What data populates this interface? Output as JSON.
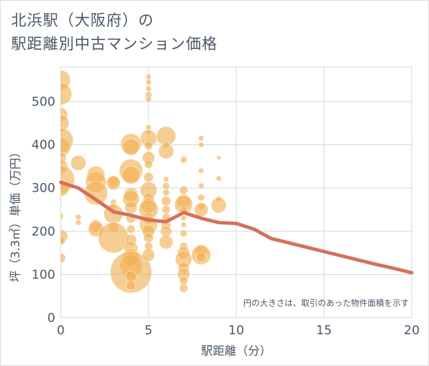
{
  "title_line1": "北浜駅（大阪府）の",
  "title_line2": "駅距離別中古マンション価格",
  "chart_data": {
    "type": "scatter",
    "xlabel": "駅距離（分）",
    "ylabel": "坪（3.3㎡）単価（万円）",
    "xlim": [
      0,
      20
    ],
    "ylim": [
      0,
      580
    ],
    "xticks": [
      "0",
      "5",
      "10",
      "15",
      "20"
    ],
    "yticks": [
      "0",
      "100",
      "200",
      "300",
      "400",
      "500"
    ],
    "grid": true,
    "note": "円の大きさは、取引のあった物件面積を示す",
    "bubble_color": "#f0b050",
    "line_color": "#d4705a",
    "trend_line": {
      "x": [
        0,
        1,
        2,
        3,
        4,
        5,
        6,
        7,
        8,
        9,
        10,
        11,
        12,
        13,
        14,
        15,
        16,
        17,
        18,
        19,
        20
      ],
      "y": [
        313,
        300,
        273,
        245,
        237,
        226,
        222,
        243,
        230,
        220,
        218,
        205,
        183,
        173,
        163,
        153,
        143,
        133,
        123,
        114,
        104
      ]
    },
    "points": [
      {
        "x": 0,
        "y": 550,
        "s": 14
      },
      {
        "x": 0,
        "y": 518,
        "s": 16
      },
      {
        "x": 0,
        "y": 470,
        "s": 10
      },
      {
        "x": 0,
        "y": 450,
        "s": 12
      },
      {
        "x": 0,
        "y": 410,
        "s": 18
      },
      {
        "x": 0,
        "y": 395,
        "s": 14
      },
      {
        "x": 0,
        "y": 370,
        "s": 8
      },
      {
        "x": 0,
        "y": 350,
        "s": 10
      },
      {
        "x": 0,
        "y": 320,
        "s": 20
      },
      {
        "x": 0,
        "y": 300,
        "s": 12
      },
      {
        "x": 0,
        "y": 235,
        "s": 4
      },
      {
        "x": 0,
        "y": 188,
        "s": 10
      },
      {
        "x": 0,
        "y": 178,
        "s": 6
      },
      {
        "x": 0,
        "y": 138,
        "s": 7
      },
      {
        "x": 1,
        "y": 358,
        "s": 11
      },
      {
        "x": 1,
        "y": 233,
        "s": 4
      },
      {
        "x": 1,
        "y": 220,
        "s": 4
      },
      {
        "x": 2,
        "y": 330,
        "s": 13
      },
      {
        "x": 2,
        "y": 314,
        "s": 15
      },
      {
        "x": 2,
        "y": 288,
        "s": 17
      },
      {
        "x": 2,
        "y": 212,
        "s": 9
      },
      {
        "x": 2,
        "y": 205,
        "s": 11
      },
      {
        "x": 3,
        "y": 315,
        "s": 8
      },
      {
        "x": 3,
        "y": 312,
        "s": 10
      },
      {
        "x": 3,
        "y": 268,
        "s": 4
      },
      {
        "x": 3,
        "y": 258,
        "s": 5
      },
      {
        "x": 3,
        "y": 240,
        "s": 14
      },
      {
        "x": 3,
        "y": 210,
        "s": 8
      },
      {
        "x": 3,
        "y": 185,
        "s": 22
      },
      {
        "x": 4,
        "y": 402,
        "s": 15
      },
      {
        "x": 4,
        "y": 395,
        "s": 12
      },
      {
        "x": 4,
        "y": 340,
        "s": 17
      },
      {
        "x": 4,
        "y": 330,
        "s": 13
      },
      {
        "x": 4,
        "y": 285,
        "s": 10
      },
      {
        "x": 4,
        "y": 275,
        "s": 12
      },
      {
        "x": 4,
        "y": 255,
        "s": 9
      },
      {
        "x": 4,
        "y": 230,
        "s": 7
      },
      {
        "x": 4,
        "y": 205,
        "s": 6
      },
      {
        "x": 4,
        "y": 180,
        "s": 8
      },
      {
        "x": 4,
        "y": 160,
        "s": 10
      },
      {
        "x": 4,
        "y": 140,
        "s": 12
      },
      {
        "x": 4,
        "y": 120,
        "s": 16
      },
      {
        "x": 4,
        "y": 105,
        "s": 30
      },
      {
        "x": 4,
        "y": 95,
        "s": 8
      },
      {
        "x": 4,
        "y": 75,
        "s": 7
      },
      {
        "x": 5,
        "y": 557,
        "s": 4
      },
      {
        "x": 5,
        "y": 545,
        "s": 4
      },
      {
        "x": 5,
        "y": 530,
        "s": 4
      },
      {
        "x": 5,
        "y": 515,
        "s": 5
      },
      {
        "x": 5,
        "y": 505,
        "s": 4
      },
      {
        "x": 5,
        "y": 440,
        "s": 4
      },
      {
        "x": 5,
        "y": 430,
        "s": 4
      },
      {
        "x": 5,
        "y": 415,
        "s": 12
      },
      {
        "x": 5,
        "y": 398,
        "s": 6
      },
      {
        "x": 5,
        "y": 370,
        "s": 9
      },
      {
        "x": 5,
        "y": 355,
        "s": 6
      },
      {
        "x": 5,
        "y": 325,
        "s": 7
      },
      {
        "x": 5,
        "y": 295,
        "s": 12
      },
      {
        "x": 5,
        "y": 275,
        "s": 8
      },
      {
        "x": 5,
        "y": 260,
        "s": 11
      },
      {
        "x": 5,
        "y": 250,
        "s": 14
      },
      {
        "x": 5,
        "y": 230,
        "s": 8
      },
      {
        "x": 5,
        "y": 215,
        "s": 13
      },
      {
        "x": 5,
        "y": 200,
        "s": 9
      },
      {
        "x": 5,
        "y": 185,
        "s": 7
      },
      {
        "x": 5,
        "y": 165,
        "s": 6
      },
      {
        "x": 5,
        "y": 145,
        "s": 9
      },
      {
        "x": 6,
        "y": 420,
        "s": 14
      },
      {
        "x": 6,
        "y": 400,
        "s": 5
      },
      {
        "x": 6,
        "y": 385,
        "s": 11
      },
      {
        "x": 6,
        "y": 320,
        "s": 4
      },
      {
        "x": 6,
        "y": 305,
        "s": 5
      },
      {
        "x": 6,
        "y": 290,
        "s": 5
      },
      {
        "x": 6,
        "y": 270,
        "s": 7
      },
      {
        "x": 6,
        "y": 250,
        "s": 6
      },
      {
        "x": 6,
        "y": 232,
        "s": 6
      },
      {
        "x": 6,
        "y": 215,
        "s": 7
      },
      {
        "x": 6,
        "y": 200,
        "s": 8
      },
      {
        "x": 6,
        "y": 175,
        "s": 10
      },
      {
        "x": 7,
        "y": 365,
        "s": 5
      },
      {
        "x": 7,
        "y": 295,
        "s": 6
      },
      {
        "x": 7,
        "y": 270,
        "s": 10
      },
      {
        "x": 7,
        "y": 262,
        "s": 13
      },
      {
        "x": 7,
        "y": 248,
        "s": 6
      },
      {
        "x": 7,
        "y": 230,
        "s": 4
      },
      {
        "x": 7,
        "y": 215,
        "s": 4
      },
      {
        "x": 7,
        "y": 195,
        "s": 5
      },
      {
        "x": 7,
        "y": 165,
        "s": 6
      },
      {
        "x": 7,
        "y": 150,
        "s": 9
      },
      {
        "x": 7,
        "y": 135,
        "s": 12
      },
      {
        "x": 7,
        "y": 115,
        "s": 8
      },
      {
        "x": 7,
        "y": 100,
        "s": 9
      },
      {
        "x": 7,
        "y": 85,
        "s": 6
      },
      {
        "x": 7,
        "y": 68,
        "s": 6
      },
      {
        "x": 8,
        "y": 415,
        "s": 4
      },
      {
        "x": 8,
        "y": 400,
        "s": 4
      },
      {
        "x": 8,
        "y": 340,
        "s": 4
      },
      {
        "x": 8,
        "y": 305,
        "s": 4
      },
      {
        "x": 8,
        "y": 278,
        "s": 5
      },
      {
        "x": 8,
        "y": 258,
        "s": 5
      },
      {
        "x": 8,
        "y": 250,
        "s": 10
      },
      {
        "x": 8,
        "y": 155,
        "s": 9
      },
      {
        "x": 8,
        "y": 145,
        "s": 14
      },
      {
        "x": 8,
        "y": 140,
        "s": 7
      },
      {
        "x": 9,
        "y": 370,
        "s": 3
      },
      {
        "x": 9,
        "y": 322,
        "s": 4
      },
      {
        "x": 9,
        "y": 275,
        "s": 4
      },
      {
        "x": 9,
        "y": 260,
        "s": 11
      }
    ]
  }
}
